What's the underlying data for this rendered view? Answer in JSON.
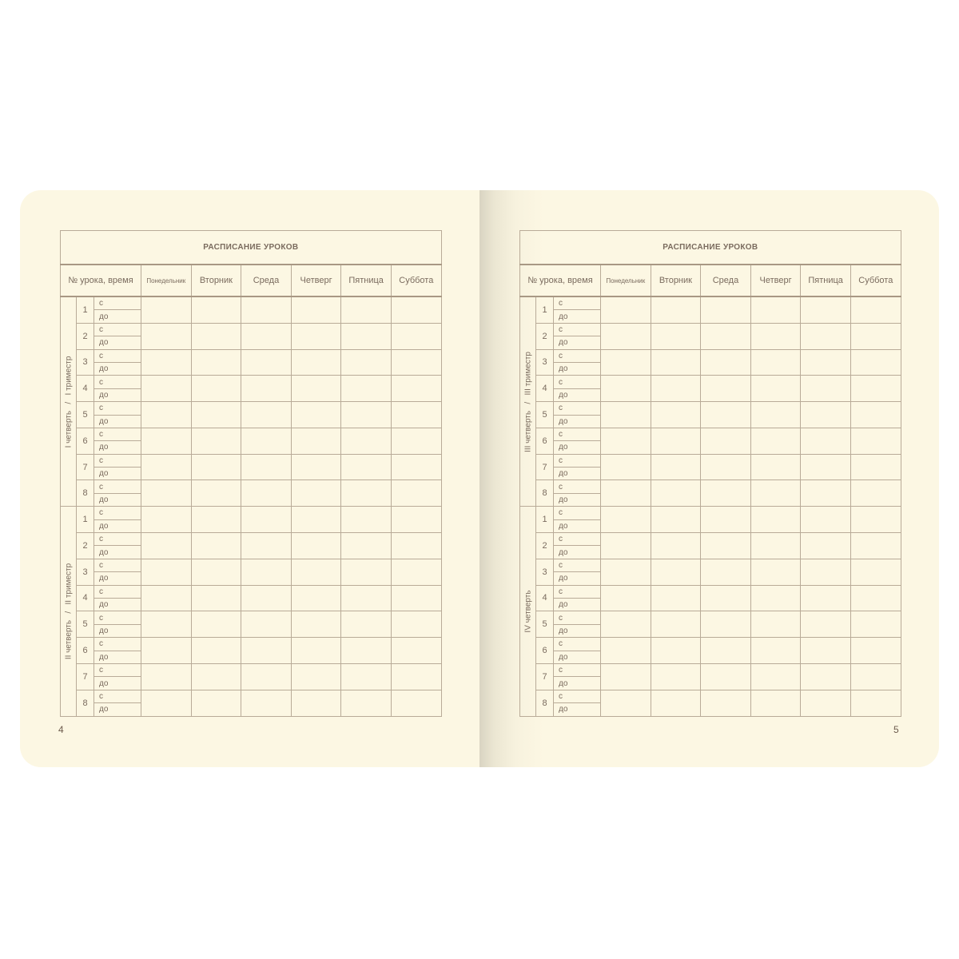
{
  "pages": [
    {
      "title": "РАСПИСАНИЕ УРОКОВ",
      "page_number": "4",
      "sections": [
        {
          "label": "I четверть   /   I триместр"
        },
        {
          "label": "II четверть   /   II триместр"
        }
      ]
    },
    {
      "title": "РАСПИСАНИЕ УРОКОВ",
      "page_number": "5",
      "sections": [
        {
          "label": "III четверть   /   III триместр"
        },
        {
          "label": "IV четверть"
        }
      ]
    }
  ],
  "headers": {
    "lesson": "№ урока, время",
    "days": [
      "Понедельник",
      "Вторник",
      "Среда",
      "Четверг",
      "Пятница",
      "Суббота"
    ]
  },
  "lesson_numbers": [
    "1",
    "2",
    "3",
    "4",
    "5",
    "6",
    "7",
    "8"
  ],
  "time_from": "с",
  "time_to": "до",
  "colors": {
    "paper": "#fcf7e3",
    "lines": "#b9ab98",
    "title": "#6b5545"
  }
}
